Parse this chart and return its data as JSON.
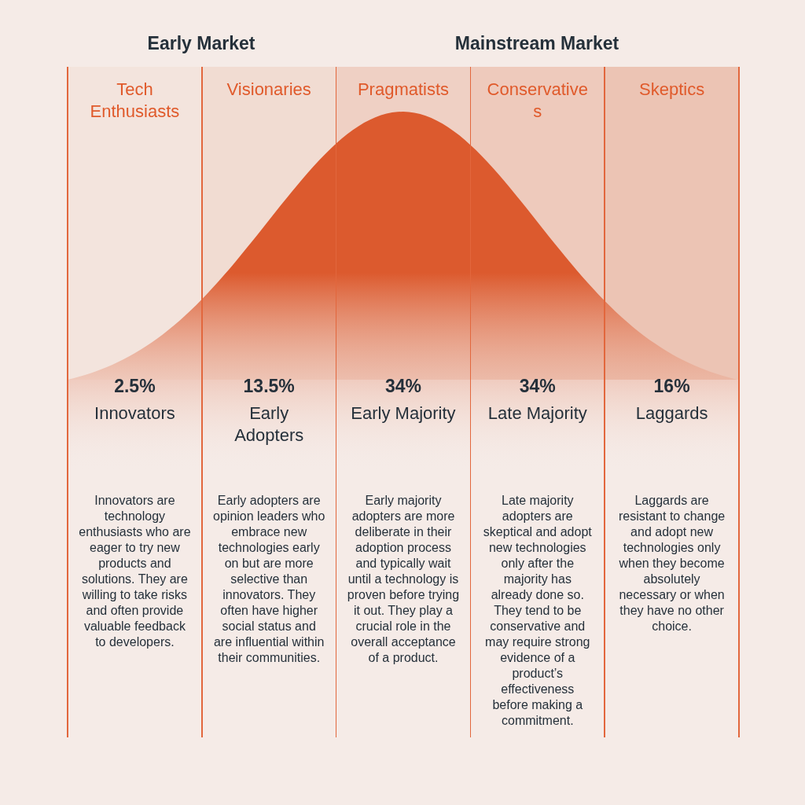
{
  "chart_data": {
    "type": "other",
    "categories": [
      "Innovators",
      "Early Adopters",
      "Early Majority",
      "Late Majority",
      "Laggards"
    ],
    "values": [
      2.5,
      13.5,
      34,
      34,
      16
    ],
    "value_labels": [
      "2.5%",
      "13.5%",
      "34%",
      "34%",
      "16%"
    ],
    "colors": [
      "#f3e4dd",
      "#f1dcd2",
      "#efd0c4",
      "#eecabc",
      "#ecc4b4"
    ],
    "annotations": [
      "Early Market",
      "Mainstream Market",
      "Tech Enthusiasts",
      "Visionaries",
      "Pragmatists",
      "Conservatives",
      "Skeptics",
      "Innovators are technology enthusiasts who are eager to try new products and solutions. They are willing to take risks and often provide valuable feedback to developers.",
      "Early adopters are opinion leaders who embrace new technologies early on but are more selective than innovators. They often have higher social status and are influential within their communities.",
      "Early majority adopters are more deliberate in their adoption process and typically wait until a technology is proven before trying it out. They play a crucial role in the overall acceptance of a product.",
      "Late majority adopters are skeptical and adopt new technologies only after the majority has already done so. They tend to be conservative and may require strong evidence of a product’s effectiveness before making a commitment.",
      "Laggards are resistant to change and adopt new technologies only when they become absolutely necessary or when they have no other choice."
    ]
  }
}
